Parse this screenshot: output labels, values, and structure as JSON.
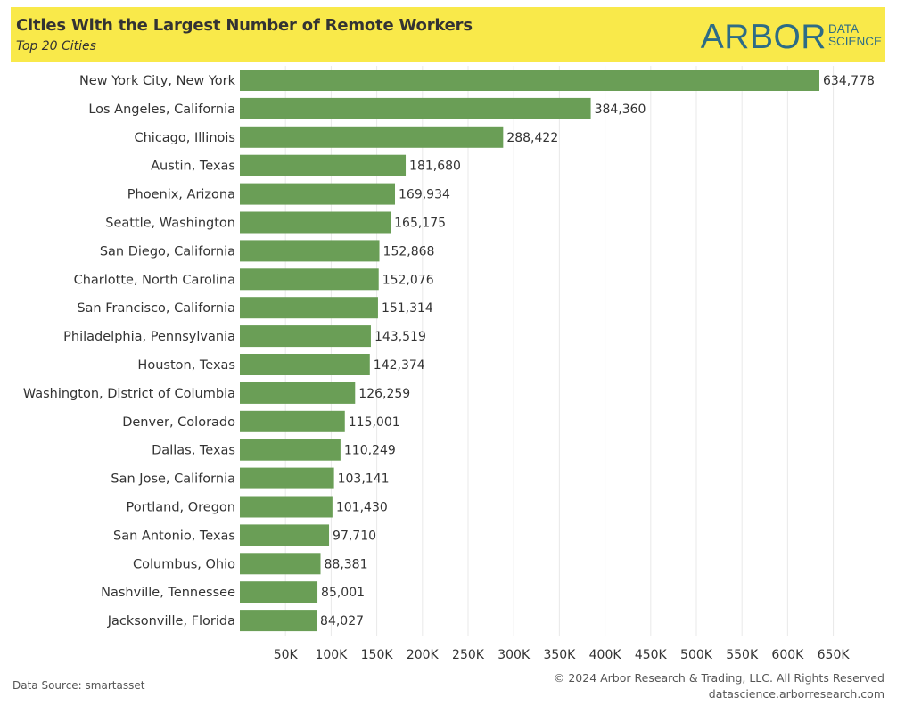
{
  "header": {
    "title": "Cities With the Largest Number of Remote Workers",
    "subtitle": "Top 20 Cities",
    "logo_main": "ARBOR",
    "logo_sub_1": "DATA",
    "logo_sub_2": "SCIENCE"
  },
  "footer": {
    "source": "Data Source: smartasset",
    "copyright": "© 2024 Arbor Research & Trading, LLC. All Rights Reserved",
    "website": "datascience.arborresearch.com"
  },
  "colors": {
    "bar": "#6a9e56",
    "header_bg": "#f9e94a",
    "logo": "#2d6c86",
    "gridline": "#e9e9e9"
  },
  "chart_data": {
    "type": "bar",
    "orientation": "horizontal",
    "title": "Cities With the Largest Number of Remote Workers",
    "subtitle": "Top 20 Cities",
    "xlabel": "",
    "ylabel": "",
    "xlim": [
      0,
      650000
    ],
    "x_ticks": [
      "50K",
      "100K",
      "150K",
      "200K",
      "250K",
      "300K",
      "350K",
      "400K",
      "450K",
      "500K",
      "550K",
      "600K",
      "650K"
    ],
    "x_tick_values": [
      50000,
      100000,
      150000,
      200000,
      250000,
      300000,
      350000,
      400000,
      450000,
      500000,
      550000,
      600000,
      650000
    ],
    "grid": "vertical",
    "categories": [
      "New York City, New York",
      "Los Angeles, California",
      "Chicago, Illinois",
      "Austin, Texas",
      "Phoenix, Arizona",
      "Seattle, Washington",
      "San Diego, California",
      "Charlotte, North Carolina",
      "San Francisco, California",
      "Philadelphia, Pennsylvania",
      "Houston, Texas",
      "Washington, District of Columbia",
      "Denver, Colorado",
      "Dallas, Texas",
      "San Jose, California",
      "Portland, Oregon",
      "San Antonio, Texas",
      "Columbus, Ohio",
      "Nashville, Tennessee",
      "Jacksonville, Florida"
    ],
    "values": [
      634778,
      384360,
      288422,
      181680,
      169934,
      165175,
      152868,
      152076,
      151314,
      143519,
      142374,
      126259,
      115001,
      110249,
      103141,
      101430,
      97710,
      88381,
      85001,
      84027
    ],
    "value_labels": [
      "634,778",
      "384,360",
      "288,422",
      "181,680",
      "169,934",
      "165,175",
      "152,868",
      "152,076",
      "151,314",
      "143,519",
      "142,374",
      "126,259",
      "115,001",
      "110,249",
      "103,141",
      "101,430",
      "97,710",
      "88,381",
      "85,001",
      "84,027"
    ]
  }
}
